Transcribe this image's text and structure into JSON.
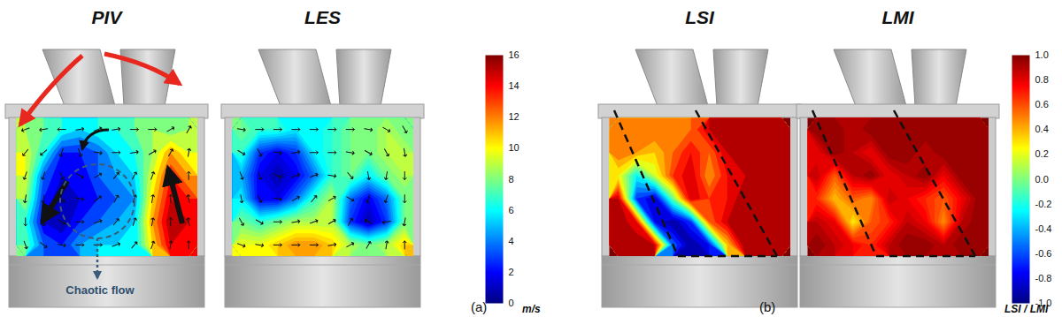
{
  "chart_data": [
    {
      "type": "heatmap",
      "caption": "(a)",
      "panels": [
        {
          "title": "PIV",
          "annotation": "Chaotic flow",
          "cells": [
            [
              9,
              8,
              7,
              6,
              7,
              7,
              8,
              9,
              8,
              9
            ],
            [
              10,
              7,
              3,
              3,
              4,
              6,
              7,
              9,
              12,
              10
            ],
            [
              10,
              4,
              2,
              2,
              4,
              5,
              6,
              10,
              14,
              12
            ],
            [
              9,
              3,
              1,
              2,
              3,
              4,
              5,
              11,
              15,
              14
            ],
            [
              7,
              2,
              1,
              3,
              4,
              5,
              6,
              12,
              16,
              15
            ],
            [
              8,
              4,
              3,
              5,
              6,
              6,
              6,
              11,
              15,
              14
            ]
          ],
          "vector_angles": [
            [
              250,
              260,
              270,
              80,
              70,
              80,
              90,
              90,
              60,
              30
            ],
            [
              220,
              230,
              200,
              160,
              100,
              90,
              80,
              60,
              30,
              10
            ],
            [
              200,
              200,
              150,
              120,
              60,
              40,
              30,
              20,
              10,
              0
            ],
            [
              190,
              190,
              140,
              100,
              50,
              30,
              20,
              10,
              0,
              350
            ],
            [
              180,
              170,
              120,
              90,
              70,
              40,
              20,
              10,
              0,
              350
            ],
            [
              160,
              130,
              100,
              90,
              90,
              70,
              40,
              20,
              10,
              0
            ]
          ]
        },
        {
          "title": "LES",
          "cells": [
            [
              8,
              7,
              7,
              6,
              6,
              7,
              8,
              8,
              9,
              8
            ],
            [
              7,
              3,
              2,
              3,
              6,
              7,
              8,
              8,
              9,
              9
            ],
            [
              5,
              2,
              1,
              2,
              4,
              7,
              8,
              6,
              8,
              9
            ],
            [
              6,
              2,
              2,
              4,
              7,
              9,
              4,
              2,
              4,
              8
            ],
            [
              8,
              7,
              8,
              9,
              9,
              9,
              3,
              1,
              3,
              8
            ],
            [
              10,
              10,
              11,
              12,
              12,
              11,
              9,
              8,
              9,
              11
            ]
          ],
          "vector_angles": [
            [
              100,
              90,
              90,
              90,
              90,
              90,
              90,
              100,
              120,
              150
            ],
            [
              120,
              150,
              100,
              80,
              90,
              90,
              100,
              120,
              150,
              170
            ],
            [
              160,
              160,
              110,
              70,
              70,
              100,
              140,
              170,
              190,
              180
            ],
            [
              170,
              150,
              100,
              60,
              40,
              60,
              120,
              200,
              200,
              180
            ],
            [
              150,
              120,
              90,
              80,
              70,
              60,
              30,
              300,
              260,
              190
            ],
            [
              110,
              100,
              90,
              90,
              90,
              80,
              60,
              30,
              10,
              0
            ]
          ]
        }
      ],
      "colorbar": {
        "lim": [
          0,
          16
        ],
        "ticks": [
          0,
          2,
          4,
          6,
          8,
          10,
          12,
          14,
          16
        ],
        "label": "m/s"
      }
    },
    {
      "type": "heatmap",
      "caption": "(b)",
      "panels": [
        {
          "title": "LSI",
          "cells": [
            [
              0.5,
              0.5,
              0.6,
              0.5,
              0.6,
              0.9,
              1,
              1,
              1,
              1
            ],
            [
              0.6,
              0.5,
              0.4,
              0.6,
              0.8,
              0.6,
              0.9,
              1,
              1,
              1
            ],
            [
              0.3,
              -0.2,
              0.2,
              0.7,
              0.9,
              0.5,
              0.8,
              0.9,
              1,
              1
            ],
            [
              0.9,
              -0.6,
              -0.8,
              0.0,
              0.9,
              0.7,
              0.8,
              1,
              1,
              1
            ],
            [
              1,
              0.8,
              -0.7,
              -0.9,
              -0.6,
              0.6,
              0.9,
              1,
              1,
              1
            ],
            [
              1,
              1,
              0.9,
              -0.5,
              -0.9,
              -0.7,
              0.4,
              1,
              1,
              1
            ]
          ]
        },
        {
          "title": "LMI",
          "cells": [
            [
              1,
              1,
              0.9,
              1,
              1,
              1,
              1,
              1,
              1,
              1
            ],
            [
              0.8,
              1,
              0.9,
              0.8,
              1,
              1,
              0.9,
              1,
              1,
              1
            ],
            [
              0.9,
              0.6,
              0.9,
              1,
              0.8,
              0.9,
              1,
              0.8,
              1,
              1
            ],
            [
              0.7,
              0.4,
              0.6,
              0.5,
              0.9,
              0.8,
              0.7,
              0.6,
              0.8,
              1
            ],
            [
              0.9,
              0.8,
              0.3,
              0.6,
              0.7,
              0.9,
              0.8,
              0.5,
              0.9,
              1
            ],
            [
              1,
              0.9,
              0.8,
              0.7,
              0.9,
              1,
              1,
              0.9,
              1,
              1
            ]
          ]
        }
      ],
      "colorbar": {
        "lim": [
          -1,
          1
        ],
        "ticks": [
          {
            "value": -1,
            "label": "-1.0"
          },
          -0.8,
          -0.6,
          -0.4,
          -0.2,
          {
            "value": 0,
            "label": "0.0"
          },
          0.2,
          0.4,
          0.6,
          0.8,
          {
            "value": 1,
            "label": "1.0"
          }
        ],
        "label": "LSI / LMI"
      }
    }
  ]
}
